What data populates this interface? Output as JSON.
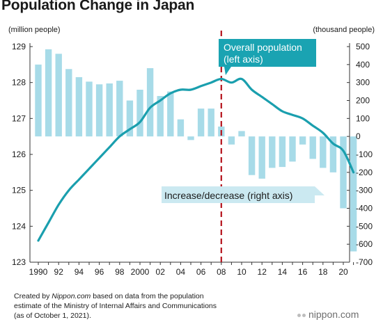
{
  "title": "Population Change in Japan",
  "source": {
    "line1_prefix": "Created by ",
    "line1_brand": "Nippon.com",
    "line1_suffix": " based on data from the population",
    "line2": "estimate of the Ministry of Internal Affairs and Communications",
    "line3": "(as of October 1, 2021)."
  },
  "logo": "nippon.com",
  "chart_data": {
    "type": "bar+line",
    "xlabel": "",
    "years": [
      1990,
      1991,
      1992,
      1993,
      1994,
      1995,
      1996,
      1997,
      1998,
      1999,
      2000,
      2001,
      2002,
      2003,
      2004,
      2005,
      2006,
      2007,
      2008,
      2009,
      2010,
      2011,
      2012,
      2013,
      2014,
      2015,
      2016,
      2017,
      2018,
      2019,
      2020,
      2021
    ],
    "x_tick_labels": [
      "1990",
      "92",
      "94",
      "96",
      "98",
      "2000",
      "02",
      "04",
      "06",
      "08",
      "10",
      "12",
      "14",
      "16",
      "18",
      "20"
    ],
    "series": [
      {
        "name": "Overall population (left axis)",
        "type": "line",
        "axis": "left",
        "values": [
          123.6,
          124.1,
          124.6,
          125.0,
          125.3,
          125.6,
          125.9,
          126.2,
          126.5,
          126.7,
          126.9,
          127.3,
          127.5,
          127.7,
          127.8,
          127.8,
          127.9,
          128.0,
          128.1,
          128.0,
          128.1,
          127.8,
          127.6,
          127.4,
          127.2,
          127.1,
          127.0,
          126.8,
          126.6,
          126.3,
          126.1,
          125.5
        ]
      },
      {
        "name": "Increase/decrease (right axis)",
        "type": "bar",
        "axis": "right",
        "values": [
          400,
          485,
          460,
          375,
          330,
          305,
          290,
          295,
          310,
          200,
          260,
          380,
          225,
          250,
          95,
          -20,
          155,
          155,
          55,
          -45,
          30,
          -215,
          -235,
          -175,
          -170,
          -140,
          -45,
          -125,
          -175,
          -200,
          -400,
          -640
        ]
      }
    ],
    "left_axis": {
      "label": "(million people)",
      "range": [
        123,
        129
      ],
      "ticks": [
        123,
        124,
        125,
        126,
        127,
        128,
        129
      ]
    },
    "right_axis": {
      "label": "(thousand people)",
      "range": [
        -700,
        500
      ],
      "ticks": [
        500,
        400,
        300,
        200,
        100,
        0,
        -100,
        -200,
        -300,
        -400,
        -500,
        -600,
        -700
      ]
    },
    "annotations": {
      "marker_label": "08",
      "line_label_1": "Overall population",
      "line_label_2": "(left axis)",
      "bar_label": "Increase/decrease (right axis)"
    },
    "colors": {
      "line": "#1a9fae",
      "bar": "#a7dbe8",
      "marker": "#b5121b",
      "callout": "#1aa3b2"
    },
    "grid": false,
    "legend": "none"
  }
}
